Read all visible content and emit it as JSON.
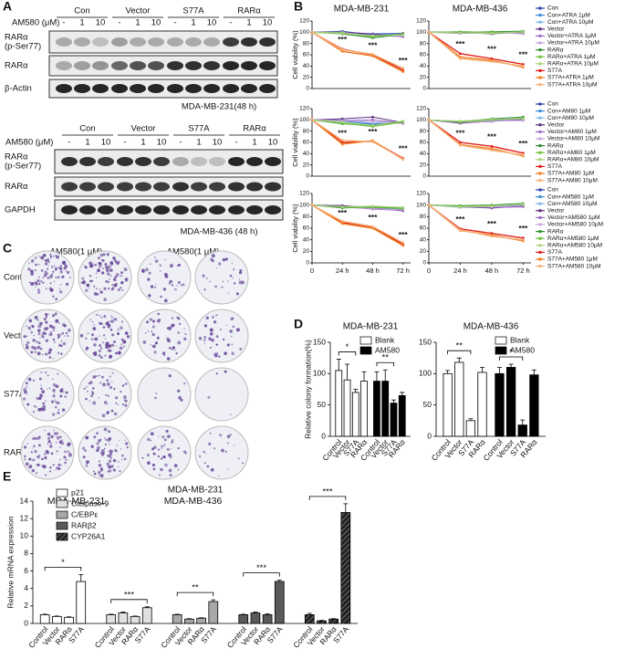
{
  "panel_labels": [
    "A",
    "B",
    "C",
    "D",
    "E"
  ],
  "blots": [
    {
      "groups": [
        "Con",
        "Vector",
        "S77A",
        "RARα"
      ],
      "treatment": "AM580 (μM)",
      "doses": [
        "-",
        "1",
        "10"
      ],
      "rows": [
        [
          "RARα",
          "(p-Ser77)"
        ],
        [
          "RARα"
        ],
        [
          "β-Actin"
        ]
      ],
      "caption": "MDA-MB-231(48 h)"
    },
    {
      "groups": [
        "Con",
        "Vector",
        "S77A",
        "RARα"
      ],
      "treatment": "AM580 (μM)",
      "doses": [
        "-",
        "1",
        "10"
      ],
      "rows": [
        [
          "RARα",
          "(p-Ser77)"
        ],
        [
          "RARα"
        ],
        [
          "GAPDH"
        ]
      ],
      "caption": "MDA-MB-436 (48 h)"
    }
  ],
  "colony": {
    "treatment": "AM580(1 μM)",
    "signs": [
      "-",
      "+"
    ],
    "rows": [
      "Control",
      "Vector",
      "S77A",
      "RARα"
    ],
    "cells": [
      "MDA-MB-231",
      "MDA-MB-436"
    ]
  },
  "chart_data": [
    {
      "type": "line",
      "ylabel": "Cell viability (%)",
      "x": [
        0,
        24,
        48,
        72
      ],
      "xlim": [
        0,
        78
      ],
      "ylim": [
        0,
        120
      ],
      "yticks": [
        0,
        20,
        40,
        60,
        80,
        100,
        120
      ],
      "legend": "right",
      "series": [
        {
          "name": "Con",
          "color": "#2a3fa8"
        },
        {
          "name": "Con+ATRA 1μM",
          "color": "#3b8fd6"
        },
        {
          "name": "Con+ATRA 10μM",
          "color": "#7fb8e6"
        },
        {
          "name": "Vector",
          "color": "#5a2d82"
        },
        {
          "name": "Vector+ATRA 1μM",
          "color": "#9b6bc4"
        },
        {
          "name": "Vector+ATRA 10μM",
          "color": "#c9a3df"
        },
        {
          "name": "RARα",
          "color": "#2e8b2e"
        },
        {
          "name": "RARα+ATRA 1μM",
          "color": "#6cbf3a"
        },
        {
          "name": "RARα+ATRA 10μM",
          "color": "#a8d57a"
        },
        {
          "name": "S77A",
          "color": "#e0201b"
        },
        {
          "name": "S77A+ATRA 1μM",
          "color": "#f07a1c"
        },
        {
          "name": "S77A+ATRA 10μM",
          "color": "#f4b27a"
        }
      ],
      "panels": [
        {
          "title": "MDA-MB-231",
          "annotations": [
            "***",
            "***",
            "***"
          ],
          "values": [
            [
              100,
              100,
              97,
              98
            ],
            [
              100,
              102,
              95,
              96
            ],
            [
              100,
              99,
              94,
              95
            ],
            [
              100,
              101,
              96,
              93
            ],
            [
              100,
              98,
              95,
              92
            ],
            [
              100,
              100,
              93,
              94
            ],
            [
              100,
              97,
              90,
              96
            ],
            [
              100,
              99,
              92,
              97
            ],
            [
              100,
              98,
              94,
              95
            ],
            [
              100,
              70,
              60,
              33
            ],
            [
              100,
              66,
              58,
              30
            ],
            [
              100,
              69,
              61,
              36
            ]
          ]
        },
        {
          "title": "MDA-MB-436",
          "annotations": [
            "***",
            "***",
            "***"
          ],
          "values": [
            [
              100,
              100,
              99,
              100
            ],
            [
              100,
              101,
              100,
              99
            ],
            [
              100,
              99,
              98,
              100
            ],
            [
              100,
              100,
              97,
              101
            ],
            [
              100,
              98,
              99,
              98
            ],
            [
              100,
              99,
              100,
              97
            ],
            [
              100,
              100,
              101,
              102
            ],
            [
              100,
              101,
              100,
              100
            ],
            [
              100,
              99,
              98,
              101
            ],
            [
              100,
              62,
              53,
              43
            ],
            [
              100,
              56,
              50,
              38
            ],
            [
              100,
              53,
              48,
              40
            ]
          ]
        }
      ]
    },
    {
      "type": "line",
      "ylabel": "Cell viability (%)",
      "x": [
        0,
        24,
        48,
        72
      ],
      "xlim": [
        0,
        78
      ],
      "ylim": [
        0,
        120
      ],
      "yticks": [
        0,
        20,
        40,
        60,
        80,
        100,
        120
      ],
      "legend": "right",
      "series": [
        {
          "name": "Con",
          "color": "#2a3fa8"
        },
        {
          "name": "Con+AM80 1μM",
          "color": "#3b8fd6"
        },
        {
          "name": "Con+AM80 10μM",
          "color": "#7fb8e6"
        },
        {
          "name": "Vector",
          "color": "#5a2d82"
        },
        {
          "name": "Vector+AM80 1μM",
          "color": "#9b6bc4"
        },
        {
          "name": "Vector+AM80 10μM",
          "color": "#c9a3df"
        },
        {
          "name": "RARα",
          "color": "#2e8b2e"
        },
        {
          "name": "RARα+AM80 1μM",
          "color": "#6cbf3a"
        },
        {
          "name": "RARα+AM80 10μM",
          "color": "#a8d57a"
        },
        {
          "name": "S77A",
          "color": "#e0201b"
        },
        {
          "name": "S77A+AM80 1μM",
          "color": "#f07a1c"
        },
        {
          "name": "S77A+AM80 10μM",
          "color": "#f4b27a"
        }
      ],
      "panels": [
        {
          "annotations": [
            "***",
            "***",
            "***"
          ],
          "values": [
            [
              100,
              98,
              92,
              96
            ],
            [
              100,
              97,
              93,
              95
            ],
            [
              100,
              100,
              94,
              97
            ],
            [
              100,
              102,
              105,
              95
            ],
            [
              100,
              99,
              100,
              94
            ],
            [
              100,
              98,
              97,
              93
            ],
            [
              100,
              93,
              90,
              97
            ],
            [
              100,
              94,
              88,
              96
            ],
            [
              100,
              96,
              90,
              98
            ],
            [
              100,
              60,
              62,
              32
            ],
            [
              100,
              57,
              63,
              30
            ],
            [
              100,
              64,
              61,
              31
            ]
          ]
        },
        {
          "annotations": [
            "***",
            "***",
            "***"
          ],
          "values": [
            [
              100,
              95,
              100,
              101
            ],
            [
              100,
              97,
              99,
              100
            ],
            [
              100,
              96,
              101,
              99
            ],
            [
              100,
              94,
              98,
              100
            ],
            [
              100,
              95,
              97,
              102
            ],
            [
              100,
              96,
              98,
              99
            ],
            [
              100,
              97,
              102,
              105
            ],
            [
              100,
              96,
              100,
              103
            ],
            [
              100,
              98,
              101,
              102
            ],
            [
              100,
              60,
              53,
              41
            ],
            [
              100,
              56,
              49,
              36
            ],
            [
              100,
              55,
              46,
              38
            ]
          ]
        }
      ]
    },
    {
      "type": "line",
      "ylabel": "Cell viability (%)",
      "x": [
        0,
        24,
        48,
        72
      ],
      "xlim": [
        0,
        78
      ],
      "ylim": [
        0,
        120
      ],
      "yticks": [
        0,
        20,
        40,
        60,
        80,
        100,
        120
      ],
      "xticks": [
        0,
        {
          "value": 24,
          "label": "24 h"
        },
        {
          "value": 48,
          "label": "48 h"
        },
        {
          "value": 72,
          "label": "72 h"
        }
      ],
      "legend": "right",
      "series": [
        {
          "name": "Con",
          "color": "#2a3fa8"
        },
        {
          "name": "Con+AM580 1μM",
          "color": "#3b8fd6"
        },
        {
          "name": "Con+AM580 10μM",
          "color": "#7fb8e6"
        },
        {
          "name": "Vector",
          "color": "#5a2d82"
        },
        {
          "name": "Vector+AM580 1μM",
          "color": "#9b6bc4"
        },
        {
          "name": "Vector+AM580 10μM",
          "color": "#c9a3df"
        },
        {
          "name": "RARα",
          "color": "#2e8b2e"
        },
        {
          "name": "RARα+AM580 1μM",
          "color": "#6cbf3a"
        },
        {
          "name": "RARα+AM580 10μM",
          "color": "#a8d57a"
        },
        {
          "name": "S77A",
          "color": "#e0201b"
        },
        {
          "name": "S77A+AM580 1μM",
          "color": "#f07a1c"
        },
        {
          "name": "S77A+AM580 10μM",
          "color": "#f4b27a"
        }
      ],
      "panels": [
        {
          "annotations": [
            "***",
            "***",
            "***"
          ],
          "values": [
            [
              100,
              97,
              96,
              92
            ],
            [
              100,
              96,
              95,
              93
            ],
            [
              100,
              98,
              97,
              94
            ],
            [
              100,
              99,
              95,
              90
            ],
            [
              100,
              97,
              93,
              91
            ],
            [
              100,
              96,
              94,
              92
            ],
            [
              100,
              95,
              97,
              95
            ],
            [
              100,
              96,
              96,
              94
            ],
            [
              100,
              97,
              98,
              96
            ],
            [
              100,
              70,
              62,
              32
            ],
            [
              100,
              68,
              60,
              30
            ],
            [
              100,
              72,
              63,
              35
            ]
          ]
        },
        {
          "annotations": [
            "***",
            "***",
            "***"
          ],
          "values": [
            [
              100,
              97,
              97,
              100
            ],
            [
              100,
              98,
              96,
              99
            ],
            [
              100,
              96,
              98,
              101
            ],
            [
              100,
              97,
              95,
              98
            ],
            [
              100,
              98,
              96,
              97
            ],
            [
              100,
              97,
              97,
              99
            ],
            [
              100,
              99,
              100,
              103
            ],
            [
              100,
              98,
              99,
              101
            ],
            [
              100,
              97,
              98,
              102
            ],
            [
              100,
              59,
              51,
              43
            ],
            [
              100,
              56,
              48,
              38
            ],
            [
              100,
              57,
              46,
              40
            ]
          ]
        }
      ]
    },
    {
      "type": "bar",
      "title": "MDA-MB-231",
      "ylabel": "Relative colony formation(%)",
      "categories": [
        "Control",
        "Vector",
        "S77A",
        "RARα"
      ],
      "ylim": [
        0,
        150
      ],
      "yticks": [
        0,
        50,
        100,
        150
      ],
      "legend": "top-right",
      "series": [
        {
          "name": "Blank",
          "color": "#ffffff",
          "values": [
            105,
            90,
            70,
            88
          ],
          "errors": [
            18,
            25,
            5,
            15
          ]
        },
        {
          "name": "AM580",
          "color": "#000000",
          "values": [
            88,
            88,
            53,
            65
          ],
          "errors": [
            15,
            18,
            5,
            5
          ]
        }
      ],
      "annotations": [
        "*",
        "**"
      ]
    },
    {
      "type": "bar",
      "title": "MDA-MB-436",
      "categories": [
        "Control",
        "Vector",
        "S77A",
        "RARα"
      ],
      "ylim": [
        0,
        150
      ],
      "yticks": [
        0,
        50,
        100,
        150
      ],
      "legend": "top-right",
      "series": [
        {
          "name": "Blank",
          "color": "#ffffff",
          "values": [
            100,
            118,
            25,
            102
          ],
          "errors": [
            5,
            7,
            3,
            8
          ]
        },
        {
          "name": "AM580",
          "color": "#000000",
          "values": [
            100,
            110,
            18,
            98
          ],
          "errors": [
            10,
            5,
            8,
            8
          ]
        }
      ],
      "annotations": [
        "**",
        "*"
      ]
    },
    {
      "type": "bar",
      "title": "MDA-MB-231",
      "ylabel": "Relative mRNA expression",
      "categories": [
        "Control",
        "Vector",
        "RARα",
        "S77A"
      ],
      "ylim": [
        0,
        14
      ],
      "yticks": [
        0,
        2,
        4,
        6,
        8,
        10,
        12,
        14
      ],
      "legend": "top-left",
      "series": [
        {
          "name": "p21",
          "color": "#ffffff",
          "values": [
            1.0,
            0.8,
            0.7,
            4.8
          ],
          "errors": [
            0.05,
            0.05,
            0.05,
            0.8
          ]
        },
        {
          "name": "Caspase-9",
          "color": "#e0e0e0",
          "values": [
            1.0,
            1.2,
            0.8,
            1.8
          ],
          "errors": [
            0.05,
            0.1,
            0.05,
            0.1
          ]
        },
        {
          "name": "C/EBPε",
          "color": "#a8a8a8",
          "values": [
            1.0,
            0.5,
            0.6,
            2.5
          ],
          "errors": [
            0.05,
            0.05,
            0.05,
            0.2
          ]
        },
        {
          "name": "RARβ2",
          "color": "#5a5a5a",
          "values": [
            1.0,
            1.2,
            1.0,
            4.8
          ],
          "errors": [
            0.05,
            0.1,
            0.1,
            0.15
          ]
        },
        {
          "name": "CYP26A1",
          "color": "#222222",
          "pattern": "hatch",
          "values": [
            1.0,
            0.3,
            0.5,
            12.7
          ],
          "errors": [
            0.15,
            0.05,
            0.05,
            1.0
          ]
        }
      ],
      "annotations": [
        "*",
        "***",
        "**",
        "***",
        "***"
      ]
    }
  ]
}
